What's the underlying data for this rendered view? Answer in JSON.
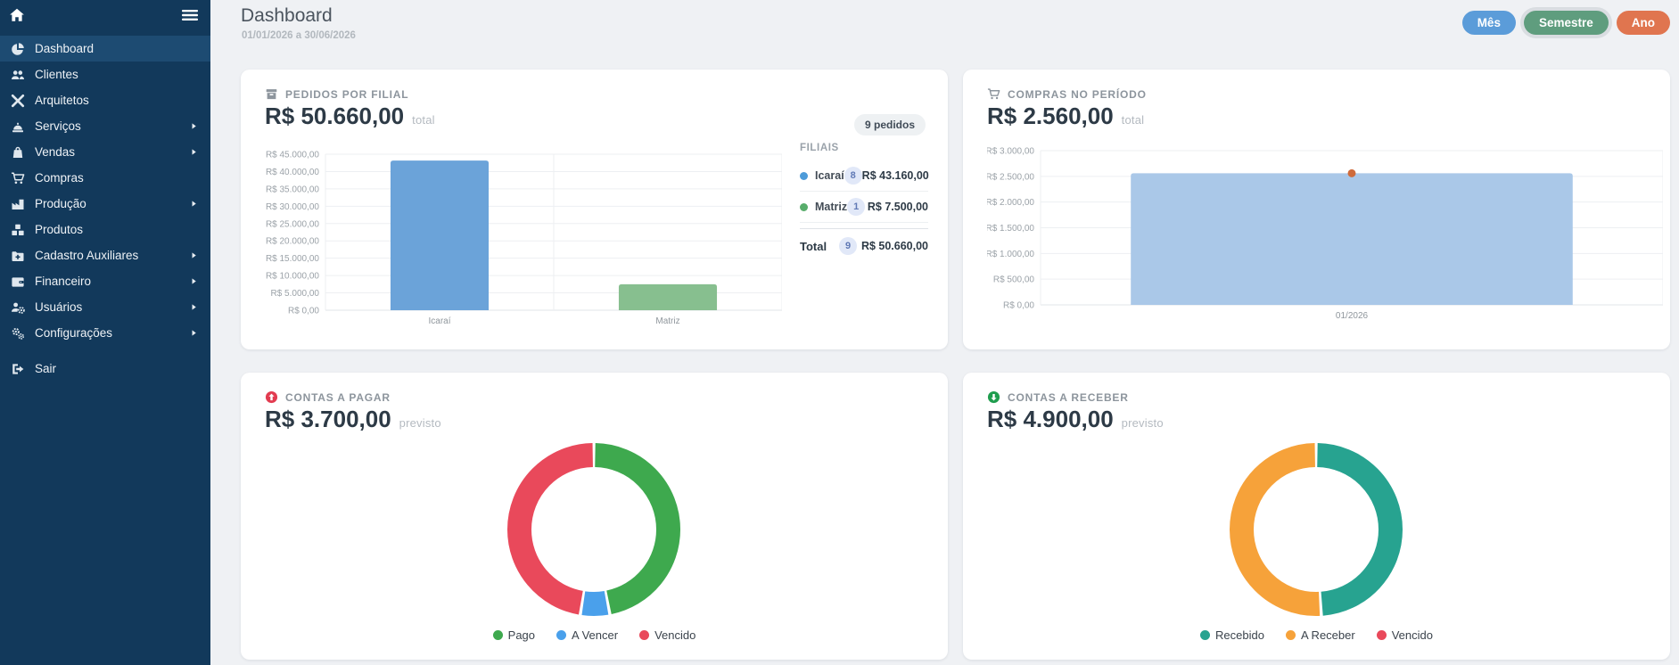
{
  "theme": {
    "sidebar_bg": "#12395B",
    "sidebar_active_bg": "#1d4b72",
    "page_bg": "#eff1f4",
    "card_bg": "#ffffff"
  },
  "sidebar": {
    "items": [
      {
        "label": "Dashboard",
        "icon": "pie-chart",
        "active": true,
        "has_submenu": false
      },
      {
        "label": "Clientes",
        "icon": "users",
        "active": false,
        "has_submenu": false
      },
      {
        "label": "Arquitetos",
        "icon": "tools",
        "active": false,
        "has_submenu": false
      },
      {
        "label": "Serviços",
        "icon": "concierge-bell",
        "active": false,
        "has_submenu": true
      },
      {
        "label": "Vendas",
        "icon": "shopping-bag",
        "active": false,
        "has_submenu": true
      },
      {
        "label": "Compras",
        "icon": "shopping-cart",
        "active": false,
        "has_submenu": false
      },
      {
        "label": "Produção",
        "icon": "industry",
        "active": false,
        "has_submenu": true
      },
      {
        "label": "Produtos",
        "icon": "boxes",
        "active": false,
        "has_submenu": false
      },
      {
        "label": "Cadastro Auxiliares",
        "icon": "folder-plus",
        "active": false,
        "has_submenu": true
      },
      {
        "label": "Financeiro",
        "icon": "wallet",
        "active": false,
        "has_submenu": true
      },
      {
        "label": "Usuários",
        "icon": "users-gear",
        "active": false,
        "has_submenu": true
      },
      {
        "label": "Configurações",
        "icon": "gears",
        "active": false,
        "has_submenu": true
      }
    ],
    "logout": {
      "label": "Sair",
      "icon": "sign-out"
    }
  },
  "header": {
    "title": "Dashboard",
    "date_range": "01/01/2026 a 30/06/2026",
    "period_buttons": [
      {
        "label": "Mês",
        "color": "#5b9cd9",
        "selected": false
      },
      {
        "label": "Semestre",
        "color": "#5f9d7e",
        "selected": true
      },
      {
        "label": "Ano",
        "color": "#e0754f",
        "selected": false
      }
    ]
  },
  "cards": {
    "pedidos": {
      "icon": "archive-box",
      "title": "PEDIDOS POR FILIAL",
      "value": "R$ 50.660,00",
      "value_suffix": "total",
      "badge": "9 pedidos",
      "panel": {
        "title": "FILIAIS",
        "rows": [
          {
            "dot_color": "#4d9bd9",
            "label": "Icaraí",
            "count": "8",
            "value": "R$ 43.160,00"
          },
          {
            "dot_color": "#58ad6b",
            "label": "Matriz",
            "count": "1",
            "value": "R$ 7.500,00"
          }
        ],
        "total": {
          "label": "Total",
          "count": "9",
          "value": "R$ 50.660,00"
        }
      }
    },
    "compras": {
      "icon": "shopping-cart",
      "title": "COMPRAS NO PERÍODO",
      "value": "R$ 2.560,00",
      "value_suffix": "total"
    },
    "pagar": {
      "icon": "circle-arrow-up",
      "icon_color": "#e23b50",
      "title": "CONTAS A PAGAR",
      "value": "R$ 3.700,00",
      "value_suffix": "previsto"
    },
    "receber": {
      "icon": "circle-arrow-down",
      "icon_color": "#1f9d4e",
      "title": "CONTAS A RECEBER",
      "value": "R$ 4.900,00",
      "value_suffix": "previsto"
    }
  },
  "chart_data": [
    {
      "id": "pedidos-por-filial",
      "type": "bar",
      "title": "PEDIDOS POR FILIAL",
      "categories": [
        "Icaraí",
        "Matriz"
      ],
      "values": [
        43160,
        7500
      ],
      "bar_colors": [
        "#6ba3d9",
        "#87bf8f"
      ],
      "ymax": 45000,
      "ystep": 5000,
      "ylim": [
        0,
        45000
      ],
      "grid": true,
      "ytick_labels": [
        "R$ 0,00",
        "R$ 5.000,00",
        "R$ 10.000,00",
        "R$ 15.000,00",
        "R$ 20.000,00",
        "R$ 25.000,00",
        "R$ 30.000,00",
        "R$ 35.000,00",
        "R$ 40.000,00",
        "R$ 45.000,00"
      ]
    },
    {
      "id": "compras-no-periodo",
      "type": "bar",
      "title": "COMPRAS NO PERÍODO",
      "categories": [
        "01/2026"
      ],
      "values": [
        2560
      ],
      "bar_colors": [
        "#aac8e8"
      ],
      "point_color": "#cf6b3b",
      "ymax": 3000,
      "ystep": 500,
      "ylim": [
        0,
        3000
      ],
      "grid": true,
      "ytick_labels": [
        "R$ 0,00",
        "R$ 500,00",
        "R$ 1.000,00",
        "R$ 1.500,00",
        "R$ 2.000,00",
        "R$ 2.500,00",
        "R$ 3.000,00"
      ]
    },
    {
      "id": "contas-a-pagar",
      "type": "donut",
      "title": "CONTAS A PAGAR",
      "total_label": "R$ 3.700,00",
      "slices": [
        {
          "label": "Pago",
          "color": "#3ea94e",
          "pct": 47
        },
        {
          "label": "A Vencer",
          "color": "#4aa0eb",
          "pct": 5.5
        },
        {
          "label": "Vencido",
          "color": "#e9495b",
          "pct": 47.5
        }
      ],
      "legend_position": "bottom"
    },
    {
      "id": "contas-a-receber",
      "type": "donut",
      "title": "CONTAS A RECEBER",
      "total_label": "R$ 4.900,00",
      "slices": [
        {
          "label": "Recebido",
          "color": "#27a390",
          "pct": 49
        },
        {
          "label": "A Receber",
          "color": "#f6a23a",
          "pct": 51
        },
        {
          "label": "Vencido",
          "color": "#e9495b",
          "pct": 0
        }
      ],
      "legend_position": "bottom"
    }
  ]
}
